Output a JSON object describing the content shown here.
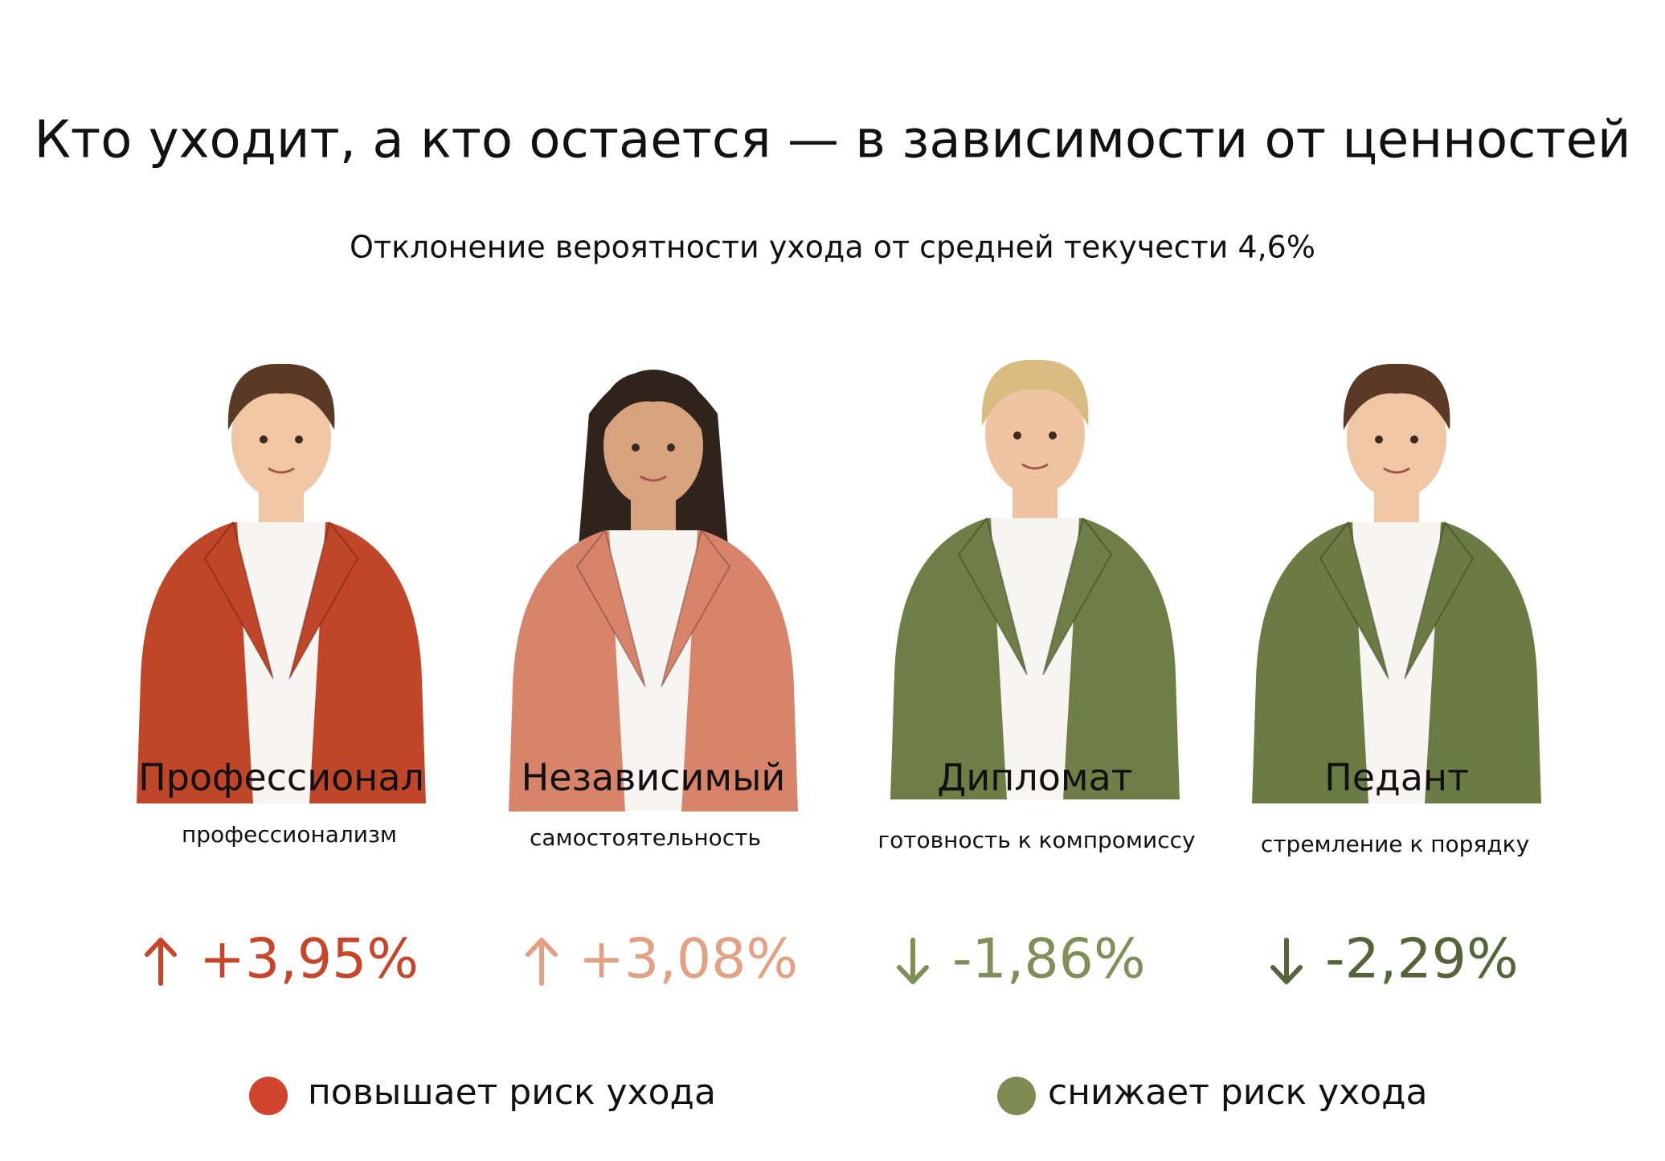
{
  "header": {
    "title": "Кто уходит, а кто остается — в зависимости от ценностей",
    "subtitle": "Отклонение вероятности ухода от средней текучести 4,6%"
  },
  "cards": [
    {
      "name": "Профессионал",
      "trait": "профессионализм",
      "value": "+3,95%",
      "color": "#c8452a"
    },
    {
      "name": "Независимый",
      "trait": "самостоятельность",
      "value": "+3,08%",
      "color": "#e3a083"
    },
    {
      "name": "Дипломат",
      "trait": "готовность к компромиссу",
      "value": "-1,86%",
      "color": "#7f8f57"
    },
    {
      "name": "Педант",
      "trait": "стремление к порядку",
      "value": "-2,29%",
      "color": "#56643a"
    }
  ],
  "legend": [
    {
      "label": "повышает риск ухода",
      "color": "#d0432c"
    },
    {
      "label": "снижает риск ухода",
      "color": "#7d8a52"
    }
  ]
}
